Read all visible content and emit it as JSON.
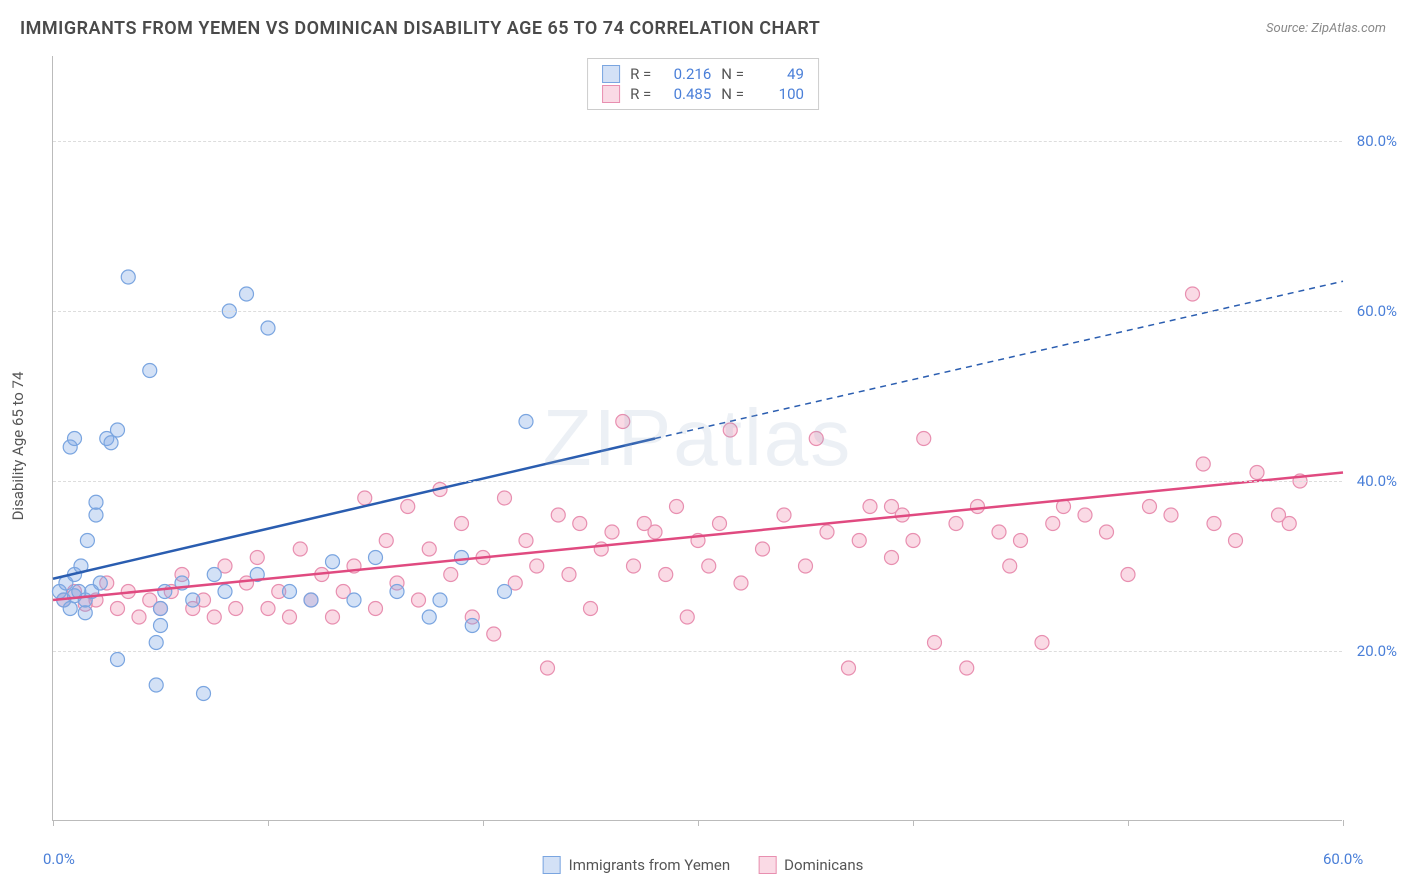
{
  "title": "IMMIGRANTS FROM YEMEN VS DOMINICAN DISABILITY AGE 65 TO 74 CORRELATION CHART",
  "source": "Source: ZipAtlas.com",
  "watermark": "ZIPatlas",
  "y_axis_label": "Disability Age 65 to 74",
  "chart": {
    "type": "scatter",
    "xlim": [
      0,
      60
    ],
    "ylim": [
      0,
      90
    ],
    "x_ticks": [
      0,
      10,
      20,
      30,
      40,
      50,
      60
    ],
    "x_tick_labels": {
      "0": "0.0%",
      "60": "60.0%"
    },
    "y_ticks": [
      20,
      40,
      60,
      80
    ],
    "y_tick_labels": {
      "20": "20.0%",
      "40": "40.0%",
      "60": "60.0%",
      "80": "80.0%"
    },
    "background_color": "#ffffff",
    "grid_color": "#dddddd",
    "marker_radius": 7,
    "marker_stroke_width": 1.2,
    "series": [
      {
        "id": "yemen",
        "label": "Immigrants from Yemen",
        "R": "0.216",
        "N": "49",
        "fill": "rgba(130,170,230,0.35)",
        "stroke": "#7aa5e0",
        "line_color": "#2a5db0",
        "line_width": 2.5,
        "trend": {
          "x1": 0,
          "y1": 28.5,
          "x2": 28,
          "y2": 45,
          "dash_x2": 60,
          "dash_y2": 63.5
        },
        "points": [
          [
            0.3,
            27
          ],
          [
            0.5,
            26
          ],
          [
            0.6,
            28
          ],
          [
            0.8,
            25
          ],
          [
            1.0,
            29
          ],
          [
            1.0,
            26.5
          ],
          [
            1.2,
            27
          ],
          [
            1.3,
            30
          ],
          [
            1.5,
            24.5
          ],
          [
            1.5,
            26
          ],
          [
            1.6,
            33
          ],
          [
            1.8,
            27
          ],
          [
            2.0,
            36
          ],
          [
            2.0,
            37.5
          ],
          [
            2.2,
            28
          ],
          [
            0.8,
            44
          ],
          [
            1.0,
            45
          ],
          [
            2.5,
            45
          ],
          [
            2.7,
            44.5
          ],
          [
            3.0,
            46
          ],
          [
            3.5,
            64
          ],
          [
            4.5,
            53
          ],
          [
            4.8,
            21
          ],
          [
            4.8,
            16
          ],
          [
            5.0,
            25
          ],
          [
            5.2,
            27
          ],
          [
            6.0,
            28
          ],
          [
            7.0,
            15
          ],
          [
            7.5,
            29
          ],
          [
            8.0,
            27
          ],
          [
            8.2,
            60
          ],
          [
            9.0,
            62
          ],
          [
            9.5,
            29
          ],
          [
            10.0,
            58
          ],
          [
            11.0,
            27
          ],
          [
            12.0,
            26
          ],
          [
            13.0,
            30.5
          ],
          [
            14.0,
            26
          ],
          [
            15.0,
            31
          ],
          [
            16.0,
            27
          ],
          [
            17.5,
            24
          ],
          [
            18.0,
            26
          ],
          [
            19.0,
            31
          ],
          [
            19.5,
            23
          ],
          [
            21.0,
            27
          ],
          [
            22.0,
            47
          ],
          [
            5.0,
            23
          ],
          [
            3.0,
            19
          ],
          [
            6.5,
            26
          ]
        ]
      },
      {
        "id": "dominican",
        "label": "Dominicans",
        "R": "0.485",
        "N": "100",
        "fill": "rgba(240,150,180,0.35)",
        "stroke": "#e88fb0",
        "line_color": "#e04a80",
        "line_width": 2.5,
        "trend": {
          "x1": 0,
          "y1": 26,
          "x2": 60,
          "y2": 41
        },
        "points": [
          [
            0.5,
            26
          ],
          [
            1.0,
            27
          ],
          [
            1.5,
            25.5
          ],
          [
            2.0,
            26
          ],
          [
            2.5,
            28
          ],
          [
            3.0,
            25
          ],
          [
            3.5,
            27
          ],
          [
            4.0,
            24
          ],
          [
            4.5,
            26
          ],
          [
            5.0,
            25
          ],
          [
            5.5,
            27
          ],
          [
            6.0,
            29
          ],
          [
            6.5,
            25
          ],
          [
            7.0,
            26
          ],
          [
            7.5,
            24
          ],
          [
            8.0,
            30
          ],
          [
            8.5,
            25
          ],
          [
            9.0,
            28
          ],
          [
            9.5,
            31
          ],
          [
            10.0,
            25
          ],
          [
            10.5,
            27
          ],
          [
            11.0,
            24
          ],
          [
            11.5,
            32
          ],
          [
            12.0,
            26
          ],
          [
            12.5,
            29
          ],
          [
            13.0,
            24
          ],
          [
            13.5,
            27
          ],
          [
            14.0,
            30
          ],
          [
            14.5,
            38
          ],
          [
            15.0,
            25
          ],
          [
            15.5,
            33
          ],
          [
            16.0,
            28
          ],
          [
            16.5,
            37
          ],
          [
            17.0,
            26
          ],
          [
            17.5,
            32
          ],
          [
            18.0,
            39
          ],
          [
            18.5,
            29
          ],
          [
            19.0,
            35
          ],
          [
            19.5,
            24
          ],
          [
            20.0,
            31
          ],
          [
            20.5,
            22
          ],
          [
            21.0,
            38
          ],
          [
            21.5,
            28
          ],
          [
            22.0,
            33
          ],
          [
            22.5,
            30
          ],
          [
            23.0,
            18
          ],
          [
            23.5,
            36
          ],
          [
            24.0,
            29
          ],
          [
            24.5,
            35
          ],
          [
            25.0,
            25
          ],
          [
            25.5,
            32
          ],
          [
            26.0,
            34
          ],
          [
            26.5,
            47
          ],
          [
            27.0,
            30
          ],
          [
            27.5,
            35
          ],
          [
            28.0,
            34
          ],
          [
            28.5,
            29
          ],
          [
            29.0,
            37
          ],
          [
            29.5,
            24
          ],
          [
            30.0,
            33
          ],
          [
            30.5,
            30
          ],
          [
            31.0,
            35
          ],
          [
            31.5,
            46
          ],
          [
            32.0,
            28
          ],
          [
            33.0,
            32
          ],
          [
            34.0,
            36
          ],
          [
            35.0,
            30
          ],
          [
            35.5,
            45
          ],
          [
            36.0,
            34
          ],
          [
            37.0,
            18
          ],
          [
            37.5,
            33
          ],
          [
            38.0,
            37
          ],
          [
            39.0,
            31
          ],
          [
            39.5,
            36
          ],
          [
            40.0,
            33
          ],
          [
            40.5,
            45
          ],
          [
            41.0,
            21
          ],
          [
            42.0,
            35
          ],
          [
            42.5,
            18
          ],
          [
            43.0,
            37
          ],
          [
            44.0,
            34
          ],
          [
            44.5,
            30
          ],
          [
            45.0,
            33
          ],
          [
            46.0,
            21
          ],
          [
            46.5,
            35
          ],
          [
            47.0,
            37
          ],
          [
            48.0,
            36
          ],
          [
            49.0,
            34
          ],
          [
            50.0,
            29
          ],
          [
            51.0,
            37
          ],
          [
            52.0,
            36
          ],
          [
            53.0,
            62
          ],
          [
            53.5,
            42
          ],
          [
            54.0,
            35
          ],
          [
            55.0,
            33
          ],
          [
            56.0,
            41
          ],
          [
            57.0,
            36
          ],
          [
            58.0,
            40
          ],
          [
            57.5,
            35
          ],
          [
            39.0,
            37
          ]
        ]
      }
    ]
  },
  "legend_top": {
    "r_label": "R =",
    "n_label": "N ="
  }
}
